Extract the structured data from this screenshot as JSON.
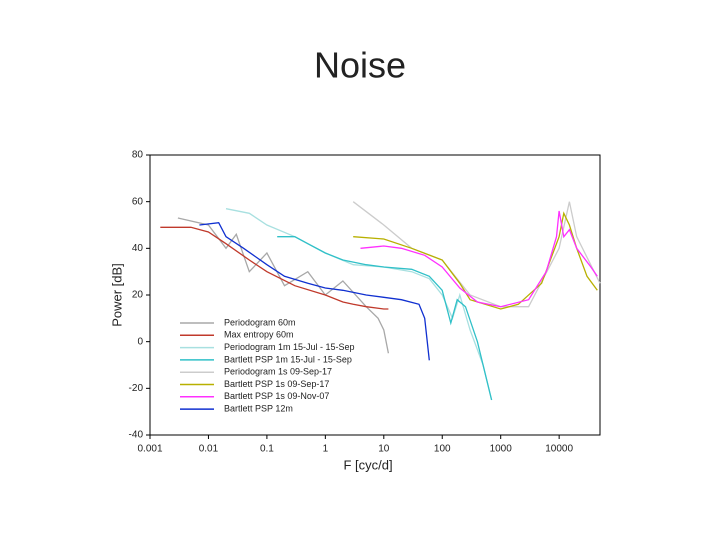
{
  "slide_title": "Noise",
  "chart_data": {
    "type": "line",
    "xscale": "log",
    "xlabel": "F [cyc/d]",
    "ylabel": "Power [dB]",
    "xlim": [
      0.001,
      50000
    ],
    "ylim": [
      -40,
      80
    ],
    "xticks": [
      0.001,
      0.01,
      0.1,
      1,
      10,
      100,
      1000,
      10000
    ],
    "yticks": [
      -40,
      -20,
      0,
      20,
      40,
      60,
      80
    ],
    "legend": "lower-left",
    "series": [
      {
        "name": "Periodogram 60m",
        "color": "#a8a8a8",
        "x": [
          0.003,
          0.01,
          0.02,
          0.03,
          0.05,
          0.1,
          0.2,
          0.5,
          1,
          2,
          5,
          8,
          10,
          12
        ],
        "values": [
          53,
          50,
          40,
          46,
          30,
          38,
          24,
          30,
          20,
          26,
          15,
          10,
          5,
          -5
        ]
      },
      {
        "name": "Max entropy 60m",
        "color": "#c0392b",
        "x": [
          0.0015,
          0.005,
          0.01,
          0.02,
          0.05,
          0.1,
          0.3,
          1,
          2,
          3,
          5,
          10,
          12
        ],
        "values": [
          49,
          49,
          47,
          42,
          35,
          30,
          24,
          20,
          17,
          16,
          15,
          14,
          14
        ]
      },
      {
        "name": "Periodogram 1m 15-Jul - 15-Sep",
        "color": "#a8e0e0",
        "x": [
          0.02,
          0.05,
          0.1,
          0.3,
          1,
          3,
          10,
          30,
          60,
          100,
          150,
          200,
          300,
          500,
          700
        ],
        "values": [
          57,
          55,
          50,
          45,
          38,
          33,
          32,
          30,
          27,
          20,
          10,
          20,
          5,
          -10,
          -25
        ]
      },
      {
        "name": "Bartlett PSP 1m 15-Jul - 15-Sep",
        "color": "#30c0c8",
        "x": [
          0.15,
          0.3,
          0.5,
          1,
          2,
          5,
          10,
          30,
          60,
          100,
          140,
          180,
          250,
          400,
          700
        ],
        "values": [
          45,
          45,
          42,
          38,
          35,
          33,
          32,
          31,
          28,
          22,
          8,
          18,
          15,
          0,
          -25
        ]
      },
      {
        "name": "Periodogram 1s 09-Sep-17",
        "color": "#cccccc",
        "x": [
          3,
          10,
          30,
          100,
          300,
          1000,
          3000,
          10000,
          15000,
          20000,
          50000
        ],
        "values": [
          60,
          50,
          40,
          35,
          20,
          15,
          15,
          40,
          60,
          45,
          25
        ]
      },
      {
        "name": "Bartlett PSP 1s 09-Sep-17",
        "color": "#b8b000",
        "x": [
          3,
          10,
          30,
          100,
          200,
          300,
          1000,
          2000,
          5000,
          10000,
          12000,
          15000,
          20000,
          30000,
          45000
        ],
        "values": [
          45,
          44,
          40,
          35,
          25,
          18,
          14,
          16,
          25,
          45,
          55,
          50,
          40,
          28,
          22
        ]
      },
      {
        "name": "Bartlett PSP 1s 09-Nov-07",
        "color": "#ff30ff",
        "x": [
          4,
          10,
          20,
          50,
          100,
          200,
          400,
          1000,
          3000,
          6000,
          9000,
          10000,
          12000,
          15000,
          20000,
          35000,
          45000
        ],
        "values": [
          40,
          41,
          40,
          37,
          32,
          23,
          17,
          15,
          18,
          30,
          45,
          56,
          45,
          48,
          40,
          32,
          28
        ]
      },
      {
        "name": "Bartlett PSP 12m",
        "color": "#1030d0",
        "x": [
          0.007,
          0.015,
          0.02,
          0.04,
          0.1,
          0.2,
          0.5,
          1,
          2,
          5,
          10,
          20,
          40,
          50,
          60
        ],
        "values": [
          50,
          51,
          45,
          40,
          33,
          28,
          25,
          23,
          22,
          20,
          19,
          18,
          16,
          10,
          -8
        ]
      }
    ]
  }
}
